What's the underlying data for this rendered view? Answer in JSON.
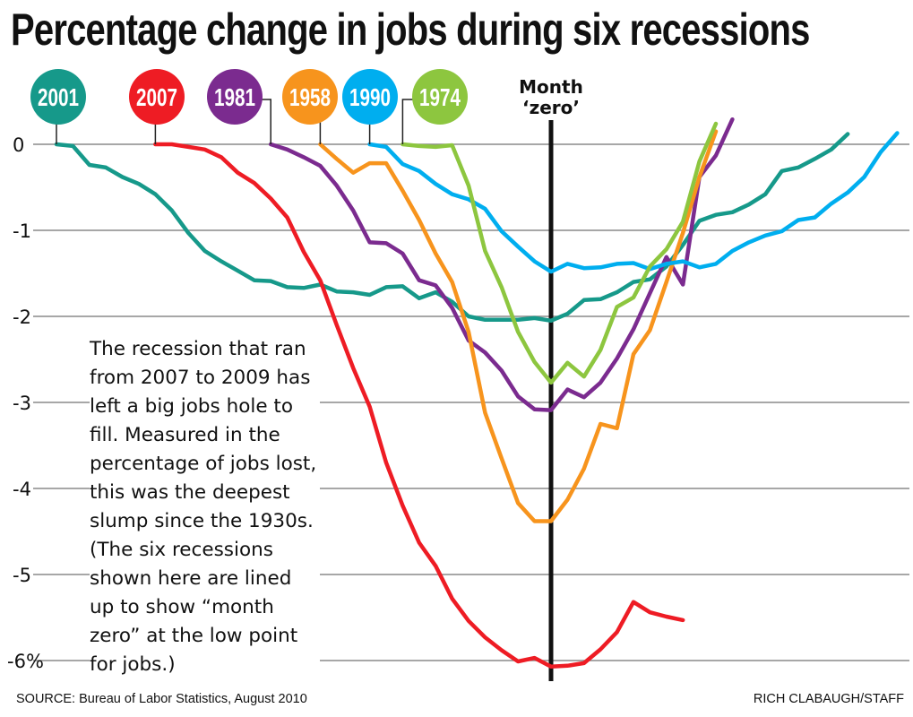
{
  "title": "Percentage change in jobs during six recessions",
  "annotation_lines": [
    "The recession that ran",
    "from 2007 to 2009 has",
    "left a big jobs hole to",
    "fill. Measured in the",
    "percentage of jobs lost,",
    "this was the deepest",
    "slump since the 1930s.",
    "(The six recessions",
    "shown here are lined",
    "up to show “month",
    "zero” at the low point",
    "for jobs.)"
  ],
  "source": "SOURCE: Bureau of Labor Statistics, August 2010",
  "credit": "RICH CLABAUGH/STAFF",
  "chart_data": {
    "type": "line",
    "title": "Percentage change in jobs during six recessions",
    "xlabel": "",
    "ylabel": "",
    "x_unit": "months relative to month zero",
    "ylim": [
      -6.2,
      0.35
    ],
    "xlim": [
      -30,
      21
    ],
    "grid": true,
    "yticks": [
      0,
      -1,
      -2,
      -3,
      -4,
      -5,
      -6
    ],
    "ytick_labels": [
      "0",
      "-1",
      "-2",
      "-3",
      "-4",
      "-5",
      "-6%"
    ],
    "reference_line": {
      "x": 0,
      "label_line1": "Month",
      "label_line2": "‘zero’"
    },
    "legend_placement": "top (labelled circles at each series start)",
    "series": [
      {
        "name": "2001",
        "color": "#16998a",
        "start_month": -30,
        "values": [
          0,
          -0.02,
          -0.24,
          -0.27,
          -0.38,
          -0.46,
          -0.58,
          -0.77,
          -1.03,
          -1.24,
          -1.36,
          -1.47,
          -1.58,
          -1.59,
          -1.66,
          -1.67,
          -1.63,
          -1.71,
          -1.72,
          -1.75,
          -1.66,
          -1.65,
          -1.79,
          -1.72,
          -1.83,
          -2.0,
          -2.04,
          -2.04,
          -2.04,
          -2.02,
          -2.05,
          -1.97,
          -1.81,
          -1.8,
          -1.72,
          -1.6,
          -1.57,
          -1.42,
          -1.17,
          -0.89,
          -0.82,
          -0.79,
          -0.7,
          -0.58,
          -0.31,
          -0.27,
          -0.17,
          -0.06,
          0.12
        ]
      },
      {
        "name": "2007",
        "color": "#ee1c24",
        "start_month": -24,
        "values": [
          0,
          0,
          -0.03,
          -0.06,
          -0.15,
          -0.33,
          -0.45,
          -0.63,
          -0.85,
          -1.25,
          -1.58,
          -2.1,
          -2.6,
          -3.05,
          -3.7,
          -4.2,
          -4.63,
          -4.9,
          -5.28,
          -5.54,
          -5.73,
          -5.88,
          -6.01,
          -5.97,
          -6.07,
          -6.06,
          -6.03,
          -5.87,
          -5.67,
          -5.32,
          -5.44,
          -5.49,
          -5.53
        ]
      },
      {
        "name": "1981",
        "color": "#7b2b8f",
        "start_month": -17,
        "values": [
          0,
          -0.06,
          -0.15,
          -0.25,
          -0.48,
          -0.77,
          -1.14,
          -1.15,
          -1.27,
          -1.58,
          -1.64,
          -1.9,
          -2.28,
          -2.42,
          -2.63,
          -2.93,
          -3.08,
          -3.09,
          -2.85,
          -2.94,
          -2.77,
          -2.49,
          -2.15,
          -1.73,
          -1.31,
          -1.63,
          -0.38,
          -0.13,
          0.29
        ]
      },
      {
        "name": "1958",
        "color": "#f7941d",
        "start_month": -14,
        "values": [
          0,
          -0.17,
          -0.33,
          -0.22,
          -0.22,
          -0.54,
          -0.88,
          -1.27,
          -1.6,
          -2.18,
          -3.12,
          -3.65,
          -4.17,
          -4.38,
          -4.38,
          -4.13,
          -3.77,
          -3.25,
          -3.3,
          -2.44,
          -2.16,
          -1.6,
          -1.03,
          -0.38,
          0.15
        ]
      },
      {
        "name": "1990",
        "color": "#00aeef",
        "start_month": -11,
        "values": [
          0,
          -0.03,
          -0.23,
          -0.31,
          -0.46,
          -0.58,
          -0.64,
          -0.75,
          -1.01,
          -1.19,
          -1.36,
          -1.48,
          -1.39,
          -1.44,
          -1.43,
          -1.39,
          -1.38,
          -1.45,
          -1.39,
          -1.36,
          -1.43,
          -1.39,
          -1.24,
          -1.14,
          -1.06,
          -1.01,
          -0.88,
          -0.85,
          -0.69,
          -0.56,
          -0.38,
          -0.09,
          0.13
        ]
      },
      {
        "name": "1974",
        "color": "#8dc63f",
        "start_month": -9,
        "values": [
          0,
          -0.02,
          -0.03,
          -0.01,
          -0.48,
          -1.24,
          -1.66,
          -2.18,
          -2.53,
          -2.77,
          -2.54,
          -2.7,
          -2.39,
          -1.89,
          -1.78,
          -1.42,
          -1.22,
          -0.9,
          -0.2,
          0.24
        ]
      }
    ]
  }
}
